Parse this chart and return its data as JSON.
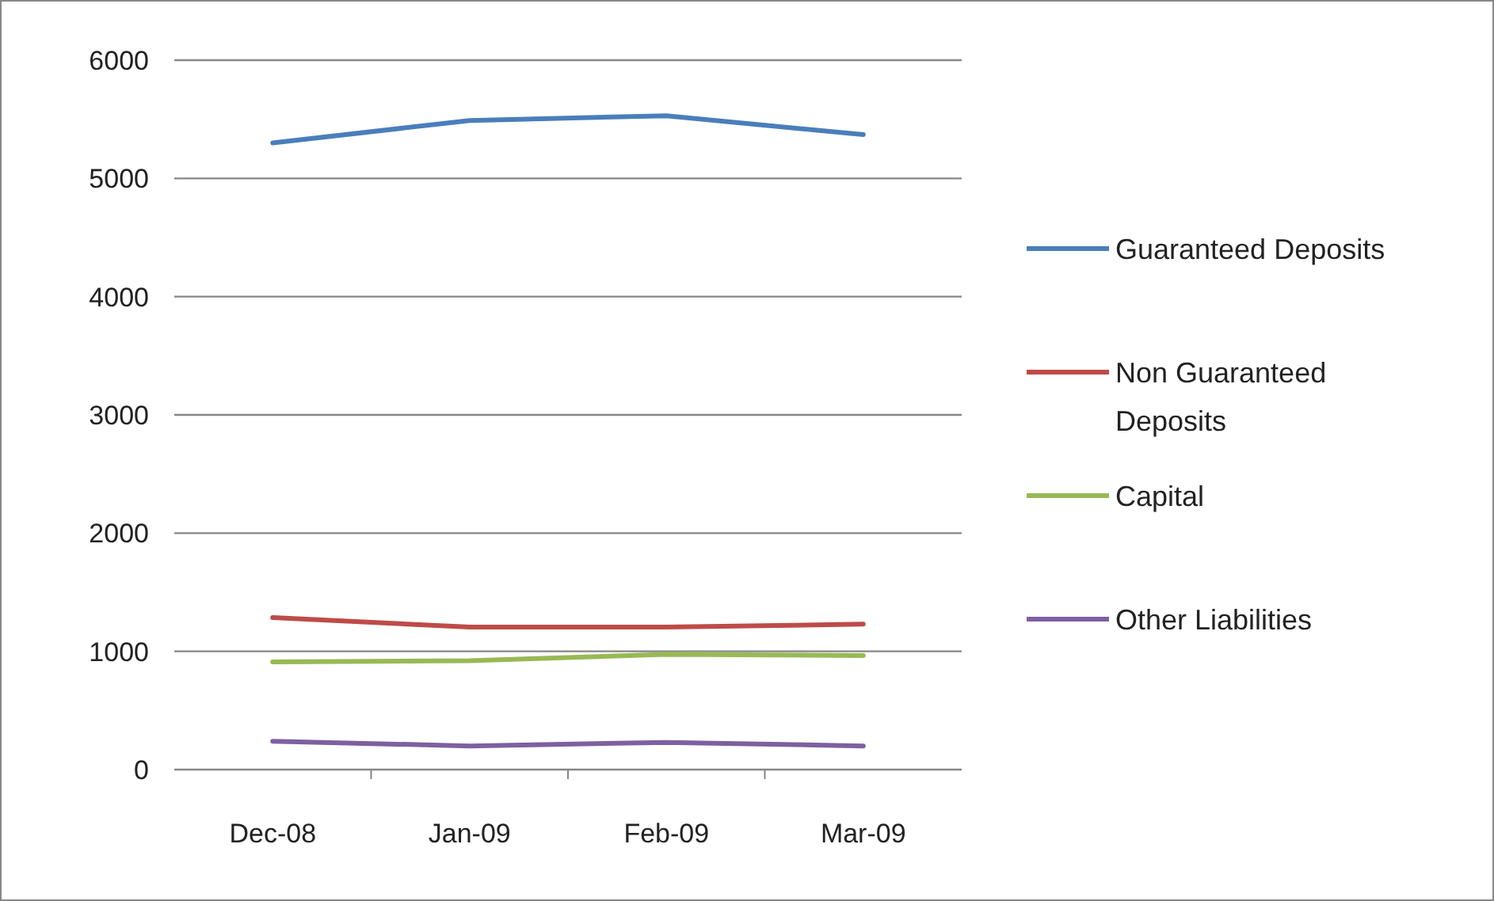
{
  "chart_data": {
    "type": "line",
    "categories": [
      "Dec-08",
      "Jan-09",
      "Feb-09",
      "Mar-09"
    ],
    "series": [
      {
        "name": "Guaranteed Deposits",
        "color": "#4a7ebb",
        "values": [
          5300,
          5490,
          5530,
          5370
        ]
      },
      {
        "name": "Non Guaranteed Deposits",
        "color": "#be4b48",
        "values": [
          1285,
          1205,
          1205,
          1230
        ]
      },
      {
        "name": "Capital",
        "color": "#98b954",
        "values": [
          910,
          920,
          975,
          965
        ]
      },
      {
        "name": "Other Liabilities",
        "color": "#7d60a0",
        "values": [
          240,
          200,
          230,
          200
        ]
      }
    ],
    "ylim": [
      0,
      6000
    ],
    "yticks": [
      0,
      1000,
      2000,
      3000,
      4000,
      5000,
      6000
    ],
    "grid": "y",
    "legend": "right",
    "marker": "none",
    "line_style": "solid"
  }
}
